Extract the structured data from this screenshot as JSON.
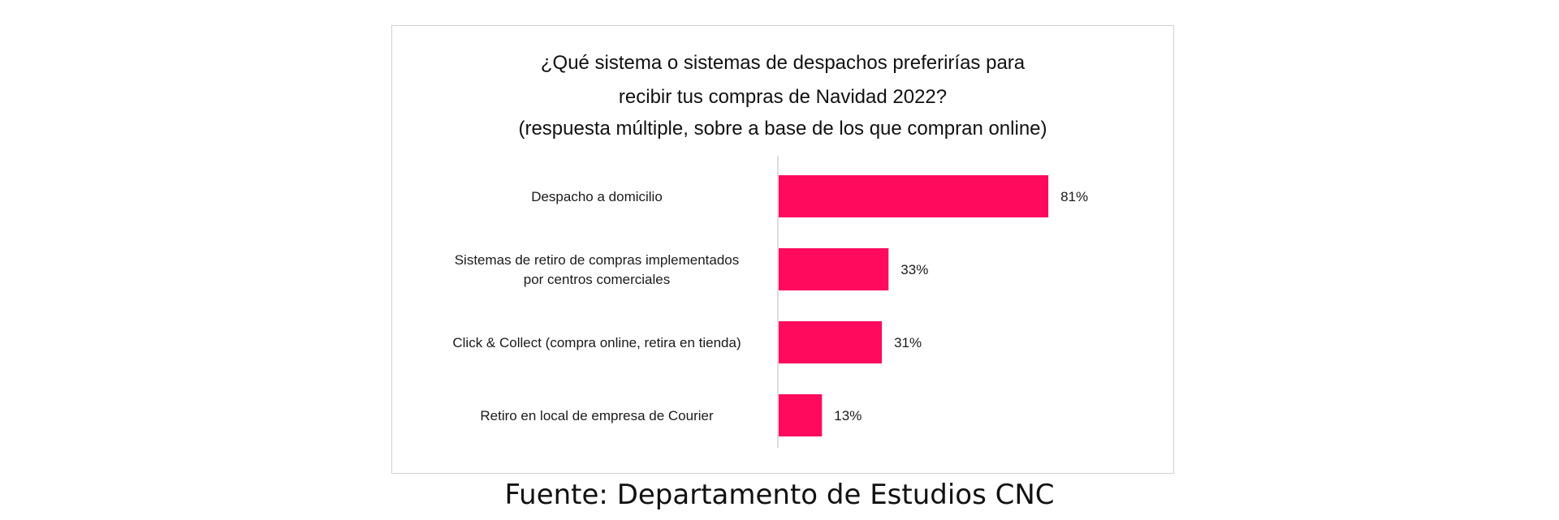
{
  "chart_data": {
    "type": "bar",
    "orientation": "horizontal",
    "title": "¿Qué sistema o sistemas de despachos preferirías para recibir tus compras de Navidad 2022?",
    "title_lines": [
      "¿Qué sistema o sistemas de despachos preferirías para",
      "recibir tus compras de Navidad 2022?"
    ],
    "subtitle": "(respuesta múltiple, sobre a base de los que compran online)",
    "categories": [
      [
        "Despacho a domicilio"
      ],
      [
        "Sistemas de retiro de compras implementados",
        "por centros comerciales"
      ],
      [
        "Click & Collect (compra online, retira en tienda)"
      ],
      [
        "Retiro en local de empresa de Courier"
      ]
    ],
    "values": [
      81,
      33,
      31,
      13
    ],
    "value_labels": [
      "81%",
      "33%",
      "31%",
      "13%"
    ],
    "unit": "%",
    "xlim": [
      0,
      100
    ],
    "grid": false,
    "legend": "none",
    "bar_color": "#ff0a5c"
  },
  "source": "Fuente: Departamento de Estudios CNC"
}
